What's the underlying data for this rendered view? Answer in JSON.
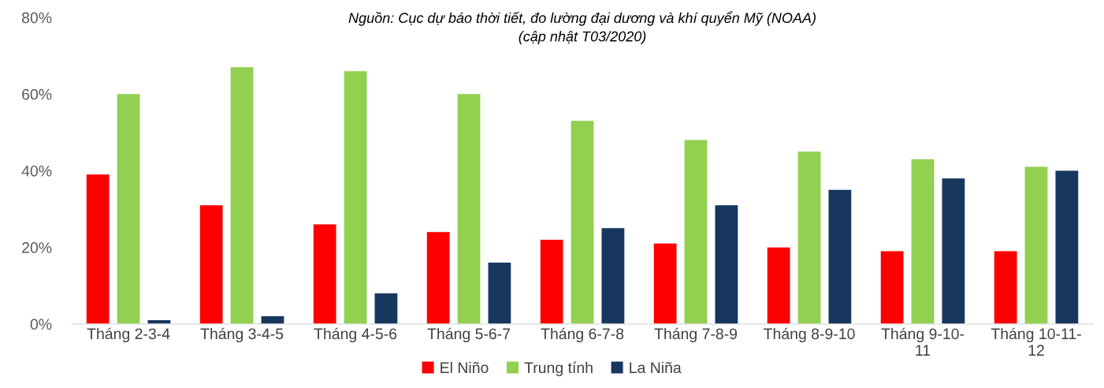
{
  "chart_data": {
    "type": "bar",
    "title": "Nguồn: Cục dự báo thời tiết, đo lường đại dương và khí quyển Mỹ (NOAA)\n(cập nhật T03/2020)",
    "categories": [
      "Tháng 2-3-4",
      "Tháng 3-4-5",
      "Tháng 4-5-6",
      "Tháng 5-6-7",
      "Tháng 6-7-8",
      "Tháng 7-8-9",
      "Tháng 8-9-10",
      "Tháng 9-10-11",
      "Tháng 10-11-12"
    ],
    "series": [
      {
        "name": "El Niño",
        "color": "#ff0000",
        "values": [
          39,
          31,
          26,
          24,
          22,
          21,
          20,
          19,
          19
        ]
      },
      {
        "name": "Trung tính",
        "color": "#92d050",
        "values": [
          60,
          67,
          66,
          60,
          53,
          48,
          45,
          43,
          41
        ]
      },
      {
        "name": "La Niña",
        "color": "#17375e",
        "values": [
          1,
          2,
          8,
          16,
          25,
          31,
          35,
          38,
          40
        ]
      }
    ],
    "ylim": [
      0,
      80
    ],
    "yticks": [
      {
        "value": 0,
        "label": "0%"
      },
      {
        "value": 20,
        "label": "20%"
      },
      {
        "value": 40,
        "label": "40%"
      },
      {
        "value": 60,
        "label": "60%"
      },
      {
        "value": 80,
        "label": "80%"
      }
    ],
    "grid": false,
    "legend": "bottom"
  }
}
